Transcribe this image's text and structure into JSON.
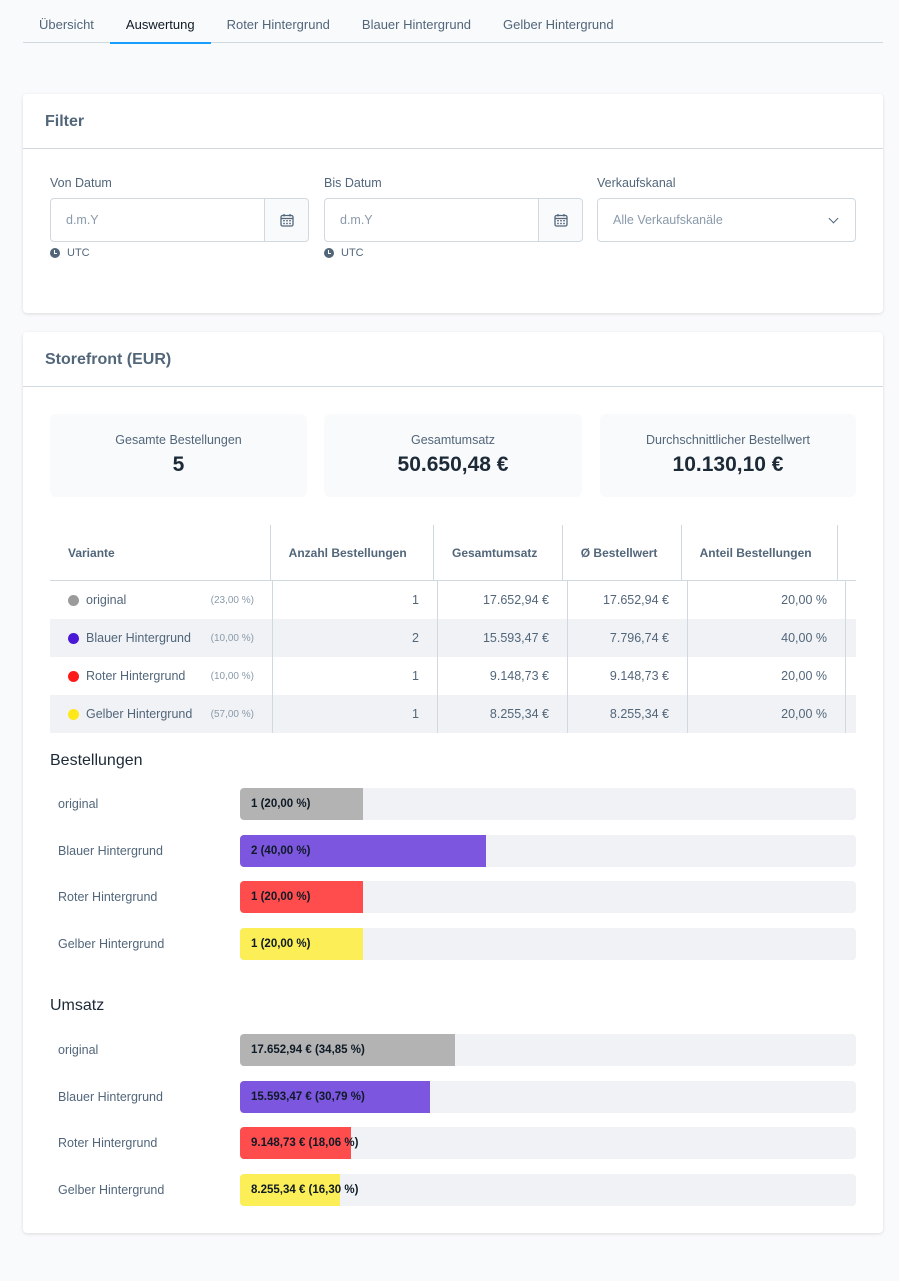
{
  "tabs": [
    "Übersicht",
    "Auswertung",
    "Roter Hintergrund",
    "Blauer Hintergrund",
    "Gelber Hintergrund"
  ],
  "active_tab": 1,
  "filter": {
    "title": "Filter",
    "from_label": "Von Datum",
    "from_placeholder": "d.m.Y",
    "to_label": "Bis Datum",
    "to_placeholder": "d.m.Y",
    "timezone": "UTC",
    "channel_label": "Verkaufskanal",
    "channel_value": "Alle Verkaufskanäle",
    "calendar_icon": "calendar-icon",
    "clock_icon": "clock-icon"
  },
  "storefront": {
    "title": "Storefront (EUR)",
    "stats": [
      {
        "label": "Gesamte Bestellungen",
        "value": "5"
      },
      {
        "label": "Gesamtumsatz",
        "value": "50.650,48 €"
      },
      {
        "label": "Durchschnittlicher Bestellwert",
        "value": "10.130,10 €"
      }
    ],
    "table": {
      "headers": [
        "Variante",
        "Anzahl Bestellungen",
        "Gesamtumsatz",
        "Ø Bestellwert",
        "Anteil Bestellungen"
      ],
      "rows": [
        {
          "name": "original",
          "color": "#9b9b9b",
          "share": "(23,00 %)",
          "orders": "1",
          "revenue": "17.652,94 €",
          "avg": "17.652,94 €",
          "order_share": "20,00 %"
        },
        {
          "name": "Blauer Hintergrund",
          "color": "#4b19d6",
          "share": "(10,00 %)",
          "orders": "2",
          "revenue": "15.593,47 €",
          "avg": "7.796,74 €",
          "order_share": "40,00 %"
        },
        {
          "name": "Roter Hintergrund",
          "color": "#ff1a1a",
          "share": "(10,00 %)",
          "orders": "1",
          "revenue": "9.148,73 €",
          "avg": "9.148,73 €",
          "order_share": "20,00 %"
        },
        {
          "name": "Gelber Hintergrund",
          "color": "#ffe81a",
          "share": "(57,00 %)",
          "orders": "1",
          "revenue": "8.255,34 €",
          "avg": "8.255,34 €",
          "order_share": "20,00 %"
        }
      ]
    },
    "orders_chart": {
      "title": "Bestellungen",
      "bars": [
        {
          "label": "original",
          "text": "1 (20,00 %)",
          "fraction": 0.2,
          "color": "#b3b3b3"
        },
        {
          "label": "Blauer Hintergrund",
          "text": "2 (40,00 %)",
          "fraction": 0.4,
          "color": "#7c56de"
        },
        {
          "label": "Roter Hintergrund",
          "text": "1 (20,00 %)",
          "fraction": 0.2,
          "color": "#ff4d4d"
        },
        {
          "label": "Gelber Hintergrund",
          "text": "1 (20,00 %)",
          "fraction": 0.2,
          "color": "#fbee56"
        }
      ]
    },
    "revenue_chart": {
      "title": "Umsatz",
      "bars": [
        {
          "label": "original",
          "text": "17.652,94 € (34,85 %)",
          "fraction": 0.3485,
          "color": "#b3b3b3"
        },
        {
          "label": "Blauer Hintergrund",
          "text": "15.593,47 € (30,79 %)",
          "fraction": 0.3079,
          "color": "#7c56de"
        },
        {
          "label": "Roter Hintergrund",
          "text": "9.148,73 € (18,06 %)",
          "fraction": 0.1806,
          "color": "#ff4d4d"
        },
        {
          "label": "Gelber Hintergrund",
          "text": "8.255,34 € (16,30 %)",
          "fraction": 0.163,
          "color": "#fbee56"
        }
      ]
    }
  }
}
